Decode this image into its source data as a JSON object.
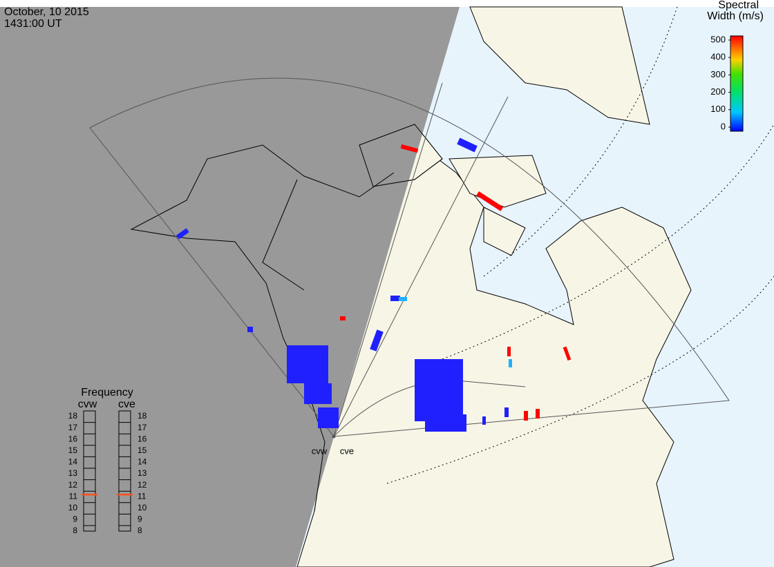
{
  "header": {
    "date": "October, 10 2015",
    "time": "1431:00 UT"
  },
  "colorbar": {
    "title": [
      "Spectral",
      "Width (m/s)"
    ],
    "range": [
      0,
      500
    ],
    "ticks": [
      0,
      100,
      200,
      300,
      400,
      500
    ]
  },
  "frequency": {
    "title": "Frequency",
    "range": [
      8,
      18
    ],
    "ticks": [
      8,
      9,
      10,
      11,
      12,
      13,
      14,
      15,
      16,
      17,
      18
    ],
    "radars": [
      {
        "name": "cvw",
        "value": 10.7
      },
      {
        "name": "cve",
        "value": 10.7
      }
    ]
  },
  "stations": [
    "cvw",
    "cve"
  ]
}
